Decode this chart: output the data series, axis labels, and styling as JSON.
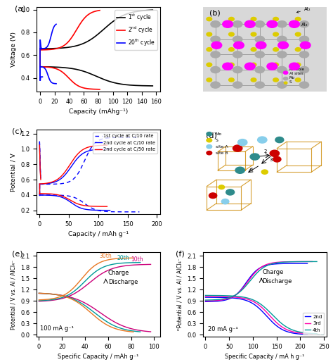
{
  "panel_a": {
    "xlabel": "Capacity (mAhg⁻¹)",
    "ylabel": "Voltage (V)",
    "xlim": [
      -5,
      165
    ],
    "ylim": [
      0.28,
      1.02
    ],
    "yticks": [
      0.4,
      0.6,
      0.8,
      1.0
    ],
    "xticks": [
      0,
      20,
      40,
      60,
      80,
      100,
      120,
      140,
      160
    ]
  },
  "panel_c": {
    "xlabel": "Capacity / mAh g⁻¹",
    "ylabel": "Potential / V",
    "xlim": [
      -5,
      205
    ],
    "ylim": [
      0.15,
      1.25
    ],
    "yticks": [
      0.2,
      0.4,
      0.6,
      0.8,
      1.0,
      1.2
    ],
    "xticks": [
      0,
      50,
      100,
      150,
      200
    ]
  },
  "panel_e": {
    "xlabel": "Specific Capacity / mAh g⁻¹",
    "ylabel": "Potential / V vs. Al / AlCl₄⁻",
    "xlim": [
      -2,
      105
    ],
    "ylim": [
      -0.05,
      2.2
    ],
    "yticks": [
      0.0,
      0.3,
      0.6,
      0.9,
      1.2,
      1.5,
      1.8,
      2.1
    ],
    "xticks": [
      0,
      20,
      40,
      60,
      80,
      100
    ],
    "annotation": "100 mA g⁻¹",
    "labels": [
      "30th",
      "20th",
      "10th"
    ],
    "colors": [
      "#E87722",
      "#009999",
      "#CC007A"
    ]
  },
  "panel_f": {
    "xlabel": "Specific Capacity / mA h g⁻¹",
    "ylabel": "ᴰPotential / V vs. Al / AlCl₄⁻",
    "xlim": [
      -5,
      255
    ],
    "ylim": [
      -0.05,
      2.2
    ],
    "yticks": [
      0.0,
      0.3,
      0.6,
      0.9,
      1.2,
      1.5,
      1.8,
      2.1
    ],
    "xticks": [
      0,
      50,
      100,
      150,
      200,
      250
    ],
    "annotation": "20 mA g⁻¹",
    "labels": [
      "2nd",
      "3rd",
      "4th"
    ],
    "colors": [
      "#0000FF",
      "#FF00AA",
      "#009999"
    ]
  }
}
